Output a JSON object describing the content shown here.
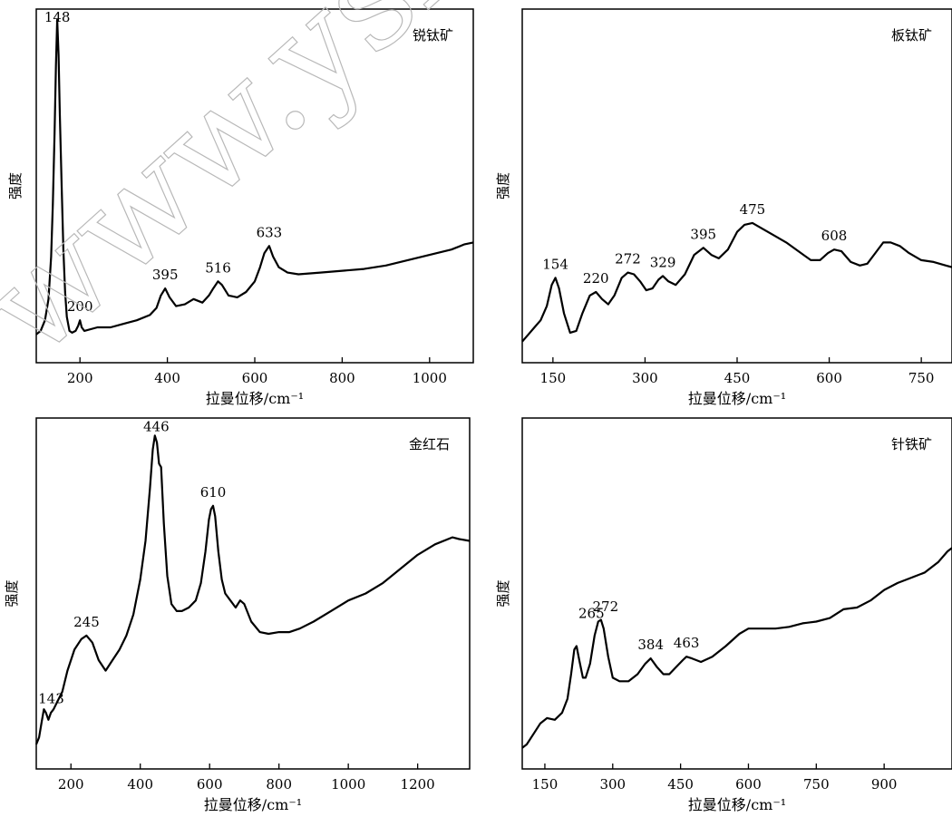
{
  "watermark": "www.yskw.ac.cn",
  "chart_data": [
    {
      "type": "line",
      "title": "锐钛矿",
      "xlabel": "拉曼位移/cm⁻¹",
      "ylabel": "强度",
      "xlim": [
        100,
        1100
      ],
      "ylim": [
        0,
        100
      ],
      "xticks": [
        200,
        400,
        600,
        800,
        1000
      ],
      "peak_labels": [
        {
          "x": 148,
          "label": "148"
        },
        {
          "x": 200,
          "label": "200"
        },
        {
          "x": 395,
          "label": "395"
        },
        {
          "x": 516,
          "label": "516"
        },
        {
          "x": 633,
          "label": "633"
        }
      ],
      "series": [
        {
          "points": [
            [
              100,
              8
            ],
            [
              110,
              9
            ],
            [
              120,
              12
            ],
            [
              128,
              18
            ],
            [
              134,
              30
            ],
            [
              138,
              45
            ],
            [
              142,
              65
            ],
            [
              145,
              84
            ],
            [
              148,
              97
            ],
            [
              151,
              87
            ],
            [
              154,
              70
            ],
            [
              158,
              50
            ],
            [
              162,
              32
            ],
            [
              166,
              20
            ],
            [
              170,
              13
            ],
            [
              176,
              9
            ],
            [
              182,
              8.5
            ],
            [
              190,
              9
            ],
            [
              196,
              10.5
            ],
            [
              200,
              12
            ],
            [
              204,
              10
            ],
            [
              210,
              9
            ],
            [
              240,
              10
            ],
            [
              270,
              10
            ],
            [
              300,
              11
            ],
            [
              330,
              12
            ],
            [
              360,
              13.5
            ],
            [
              375,
              15.5
            ],
            [
              385,
              19
            ],
            [
              395,
              21
            ],
            [
              405,
              18.5
            ],
            [
              420,
              16
            ],
            [
              440,
              16.5
            ],
            [
              460,
              18
            ],
            [
              480,
              17
            ],
            [
              495,
              19
            ],
            [
              505,
              21
            ],
            [
              516,
              23
            ],
            [
              525,
              22
            ],
            [
              540,
              19
            ],
            [
              560,
              18.5
            ],
            [
              580,
              20
            ],
            [
              600,
              23
            ],
            [
              612,
              27
            ],
            [
              622,
              31
            ],
            [
              633,
              33
            ],
            [
              642,
              30
            ],
            [
              655,
              27
            ],
            [
              675,
              25.5
            ],
            [
              700,
              25
            ],
            [
              750,
              25.5
            ],
            [
              800,
              26
            ],
            [
              850,
              26.5
            ],
            [
              900,
              27.5
            ],
            [
              950,
              29
            ],
            [
              1000,
              30.5
            ],
            [
              1050,
              32
            ],
            [
              1080,
              33.5
            ],
            [
              1100,
              34
            ]
          ]
        }
      ]
    },
    {
      "type": "line",
      "title": "板钛矿",
      "xlabel": "拉曼位移/cm⁻¹",
      "ylabel": "强度",
      "xlim": [
        100,
        800
      ],
      "ylim": [
        0,
        100
      ],
      "xticks": [
        150,
        300,
        450,
        600,
        750
      ],
      "peak_labels": [
        {
          "x": 154,
          "label": "154"
        },
        {
          "x": 220,
          "label": "220"
        },
        {
          "x": 272,
          "label": "272"
        },
        {
          "x": 329,
          "label": "329"
        },
        {
          "x": 395,
          "label": "395"
        },
        {
          "x": 475,
          "label": "475"
        },
        {
          "x": 608,
          "label": "608"
        }
      ],
      "series": [
        {
          "points": [
            [
              100,
              6
            ],
            [
              110,
              8
            ],
            [
              120,
              10
            ],
            [
              130,
              12
            ],
            [
              140,
              16
            ],
            [
              148,
              22
            ],
            [
              154,
              24
            ],
            [
              160,
              21
            ],
            [
              168,
              14
            ],
            [
              178,
              8.5
            ],
            [
              188,
              9
            ],
            [
              198,
              14
            ],
            [
              210,
              19
            ],
            [
              220,
              20
            ],
            [
              230,
              18
            ],
            [
              240,
              16.5
            ],
            [
              250,
              19
            ],
            [
              262,
              24
            ],
            [
              272,
              25.5
            ],
            [
              282,
              25
            ],
            [
              292,
              23
            ],
            [
              302,
              20.5
            ],
            [
              312,
              21
            ],
            [
              322,
              23.5
            ],
            [
              329,
              24.5
            ],
            [
              338,
              23
            ],
            [
              350,
              22
            ],
            [
              365,
              25
            ],
            [
              380,
              30.5
            ],
            [
              395,
              32.5
            ],
            [
              408,
              30.5
            ],
            [
              420,
              29.5
            ],
            [
              435,
              32
            ],
            [
              450,
              37
            ],
            [
              462,
              39
            ],
            [
              475,
              39.5
            ],
            [
              490,
              38
            ],
            [
              510,
              36
            ],
            [
              530,
              34
            ],
            [
              550,
              31.5
            ],
            [
              570,
              29
            ],
            [
              585,
              29
            ],
            [
              598,
              31
            ],
            [
              608,
              32
            ],
            [
              620,
              31.5
            ],
            [
              635,
              28.5
            ],
            [
              650,
              27.5
            ],
            [
              662,
              28
            ],
            [
              675,
              31
            ],
            [
              688,
              34
            ],
            [
              700,
              34
            ],
            [
              715,
              33
            ],
            [
              730,
              31
            ],
            [
              750,
              29
            ],
            [
              770,
              28.5
            ],
            [
              790,
              27.5
            ],
            [
              800,
              27
            ]
          ]
        }
      ]
    },
    {
      "type": "line",
      "title": "金红石",
      "xlabel": "拉曼位移/cm⁻¹",
      "ylabel": "强度",
      "xlim": [
        100,
        1350
      ],
      "ylim": [
        0,
        100
      ],
      "xticks": [
        200,
        400,
        600,
        800,
        1000,
        1200
      ],
      "peak_labels": [
        {
          "x": 143,
          "label": "143"
        },
        {
          "x": 245,
          "label": "245"
        },
        {
          "x": 446,
          "label": "446"
        },
        {
          "x": 610,
          "label": "610"
        }
      ],
      "series": [
        {
          "points": [
            [
              100,
              7
            ],
            [
              108,
              9
            ],
            [
              115,
              13
            ],
            [
              122,
              17
            ],
            [
              128,
              16
            ],
            [
              135,
              14
            ],
            [
              142,
              16
            ],
            [
              150,
              17
            ],
            [
              160,
              19
            ],
            [
              175,
              22
            ],
            [
              190,
              28
            ],
            [
              210,
              34
            ],
            [
              230,
              37
            ],
            [
              245,
              38
            ],
            [
              262,
              36
            ],
            [
              280,
              31
            ],
            [
              300,
              28
            ],
            [
              320,
              31
            ],
            [
              340,
              34
            ],
            [
              360,
              38
            ],
            [
              380,
              44
            ],
            [
              400,
              54
            ],
            [
              415,
              65
            ],
            [
              428,
              80
            ],
            [
              436,
              91
            ],
            [
              442,
              95
            ],
            [
              448,
              93
            ],
            [
              454,
              87
            ],
            [
              460,
              86
            ],
            [
              468,
              70
            ],
            [
              478,
              55
            ],
            [
              490,
              47
            ],
            [
              505,
              45
            ],
            [
              520,
              45
            ],
            [
              540,
              46
            ],
            [
              560,
              48
            ],
            [
              575,
              53
            ],
            [
              588,
              62
            ],
            [
              598,
              71
            ],
            [
              604,
              74
            ],
            [
              610,
              75
            ],
            [
              616,
              72
            ],
            [
              625,
              62
            ],
            [
              635,
              54
            ],
            [
              645,
              50
            ],
            [
              660,
              48
            ],
            [
              675,
              46
            ],
            [
              688,
              48
            ],
            [
              700,
              47
            ],
            [
              720,
              42
            ],
            [
              745,
              39
            ],
            [
              770,
              38.5
            ],
            [
              800,
              39
            ],
            [
              830,
              39
            ],
            [
              860,
              40
            ],
            [
              900,
              42
            ],
            [
              950,
              45
            ],
            [
              1000,
              48
            ],
            [
              1050,
              50
            ],
            [
              1100,
              53
            ],
            [
              1150,
              57
            ],
            [
              1200,
              61
            ],
            [
              1250,
              64
            ],
            [
              1300,
              66
            ],
            [
              1320,
              65.5
            ],
            [
              1350,
              65
            ]
          ]
        }
      ]
    },
    {
      "type": "line",
      "title": "针铁矿",
      "xlabel": "拉曼位移/cm⁻¹",
      "ylabel": "强度",
      "xlim": [
        100,
        1050
      ],
      "ylim": [
        0,
        100
      ],
      "xticks": [
        150,
        300,
        450,
        600,
        750,
        900
      ],
      "peak_labels": [
        {
          "x": 265,
          "label": "265"
        },
        {
          "x": 272,
          "label": "272"
        },
        {
          "x": 384,
          "label": "384"
        },
        {
          "x": 463,
          "label": "463"
        }
      ],
      "series": [
        {
          "points": [
            [
              100,
              6
            ],
            [
              110,
              7
            ],
            [
              125,
              10
            ],
            [
              140,
              13
            ],
            [
              155,
              14.5
            ],
            [
              172,
              14
            ],
            [
              188,
              16
            ],
            [
              200,
              20
            ],
            [
              208,
              27
            ],
            [
              215,
              34
            ],
            [
              220,
              35
            ],
            [
              226,
              31
            ],
            [
              234,
              26
            ],
            [
              240,
              26
            ],
            [
              250,
              30
            ],
            [
              260,
              38
            ],
            [
              268,
              42
            ],
            [
              274,
              42.5
            ],
            [
              280,
              40
            ],
            [
              290,
              32
            ],
            [
              300,
              26
            ],
            [
              315,
              25
            ],
            [
              335,
              25
            ],
            [
              355,
              27
            ],
            [
              372,
              30
            ],
            [
              384,
              31.5
            ],
            [
              398,
              29
            ],
            [
              412,
              27
            ],
            [
              425,
              27
            ],
            [
              440,
              29
            ],
            [
              455,
              31
            ],
            [
              463,
              32
            ],
            [
              475,
              31.5
            ],
            [
              495,
              30.5
            ],
            [
              520,
              32
            ],
            [
              550,
              35
            ],
            [
              580,
              38.5
            ],
            [
              600,
              40
            ],
            [
              630,
              40
            ],
            [
              660,
              40
            ],
            [
              690,
              40.5
            ],
            [
              720,
              41.5
            ],
            [
              750,
              42
            ],
            [
              780,
              43
            ],
            [
              810,
              45.5
            ],
            [
              840,
              46
            ],
            [
              870,
              48
            ],
            [
              900,
              51
            ],
            [
              930,
              53
            ],
            [
              960,
              54.5
            ],
            [
              990,
              56
            ],
            [
              1020,
              59
            ],
            [
              1040,
              62
            ],
            [
              1050,
              63
            ]
          ]
        }
      ]
    }
  ]
}
